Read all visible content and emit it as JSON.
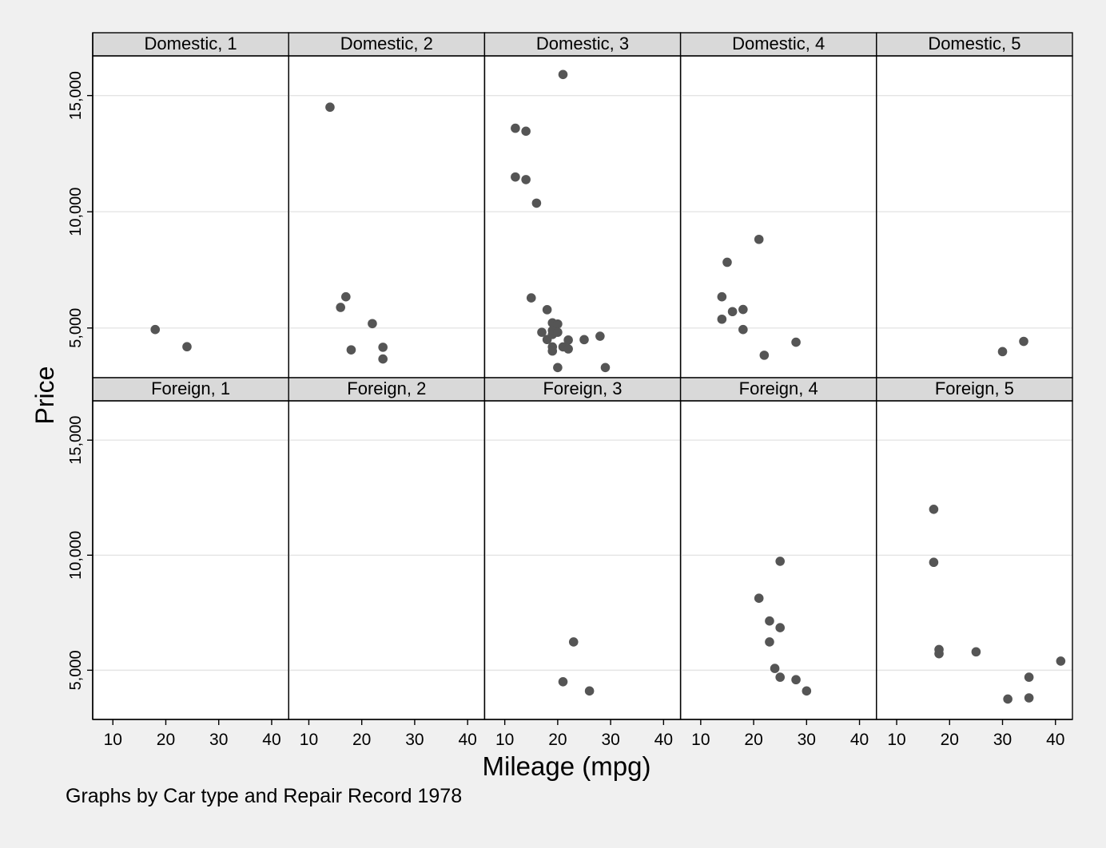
{
  "chart_data": {
    "type": "scatter",
    "xlabel": "Mileage (mpg)",
    "ylabel": "Price",
    "note": "Graphs by Car type and Repair Record 1978",
    "xlim": [
      8,
      42
    ],
    "ylim": [
      3000,
      16500
    ],
    "xticks": [
      10,
      20,
      30,
      40
    ],
    "xtick_labels": [
      "10",
      "20",
      "30",
      "40"
    ],
    "yticks": [
      5000,
      10000,
      15000
    ],
    "ytick_labels": [
      "5,000",
      "10,000",
      "15,000"
    ],
    "grid": true,
    "marker_color": "#555555",
    "panels": [
      {
        "title": "Domestic, 1",
        "points": [
          [
            18,
            4934
          ],
          [
            24,
            4195
          ]
        ]
      },
      {
        "title": "Domestic, 2",
        "points": [
          [
            14,
            14500
          ],
          [
            16,
            5886
          ],
          [
            17,
            6342
          ],
          [
            18,
            4060
          ],
          [
            22,
            5189
          ],
          [
            24,
            4172
          ],
          [
            24,
            3667
          ]
        ]
      },
      {
        "title": "Domestic, 3",
        "points": [
          [
            12,
            13594
          ],
          [
            12,
            11497
          ],
          [
            14,
            13466
          ],
          [
            14,
            11385
          ],
          [
            15,
            6295
          ],
          [
            16,
            10372
          ],
          [
            17,
            4816
          ],
          [
            18,
            4504
          ],
          [
            18,
            5788
          ],
          [
            19,
            5222
          ],
          [
            19,
            4890
          ],
          [
            19,
            4723
          ],
          [
            19,
            4187
          ],
          [
            19,
            4010
          ],
          [
            20,
            5172
          ],
          [
            20,
            4816
          ],
          [
            21,
            15906
          ],
          [
            21,
            4187
          ],
          [
            22,
            4482
          ],
          [
            22,
            4099
          ],
          [
            25,
            4499
          ],
          [
            28,
            4647
          ],
          [
            29,
            3299
          ],
          [
            20,
            3299
          ]
        ]
      },
      {
        "title": "Domestic, 4",
        "points": [
          [
            14,
            6342
          ],
          [
            14,
            5379
          ],
          [
            15,
            7827
          ],
          [
            16,
            5705
          ],
          [
            18,
            5798
          ],
          [
            18,
            4934
          ],
          [
            21,
            8814
          ],
          [
            22,
            3829
          ],
          [
            28,
            4389
          ]
        ]
      },
      {
        "title": "Domestic, 5",
        "points": [
          [
            30,
            3984
          ],
          [
            34,
            4425
          ]
        ]
      },
      {
        "title": "Foreign, 1",
        "points": []
      },
      {
        "title": "Foreign, 2",
        "points": []
      },
      {
        "title": "Foreign, 3",
        "points": [
          [
            21,
            4499
          ],
          [
            23,
            6229
          ],
          [
            26,
            4099
          ]
        ]
      },
      {
        "title": "Foreign, 4",
        "points": [
          [
            21,
            8129
          ],
          [
            23,
            7140
          ],
          [
            23,
            6229
          ],
          [
            24,
            5079
          ],
          [
            25,
            9735
          ],
          [
            25,
            6850
          ],
          [
            25,
            4697
          ],
          [
            28,
            4589
          ],
          [
            30,
            4099
          ]
        ]
      },
      {
        "title": "Foreign, 5",
        "points": [
          [
            17,
            11995
          ],
          [
            17,
            9690
          ],
          [
            18,
            5899
          ],
          [
            18,
            5719
          ],
          [
            25,
            5799
          ],
          [
            31,
            3748
          ],
          [
            35,
            4697
          ],
          [
            35,
            3798
          ],
          [
            41,
            5397
          ]
        ]
      }
    ]
  }
}
